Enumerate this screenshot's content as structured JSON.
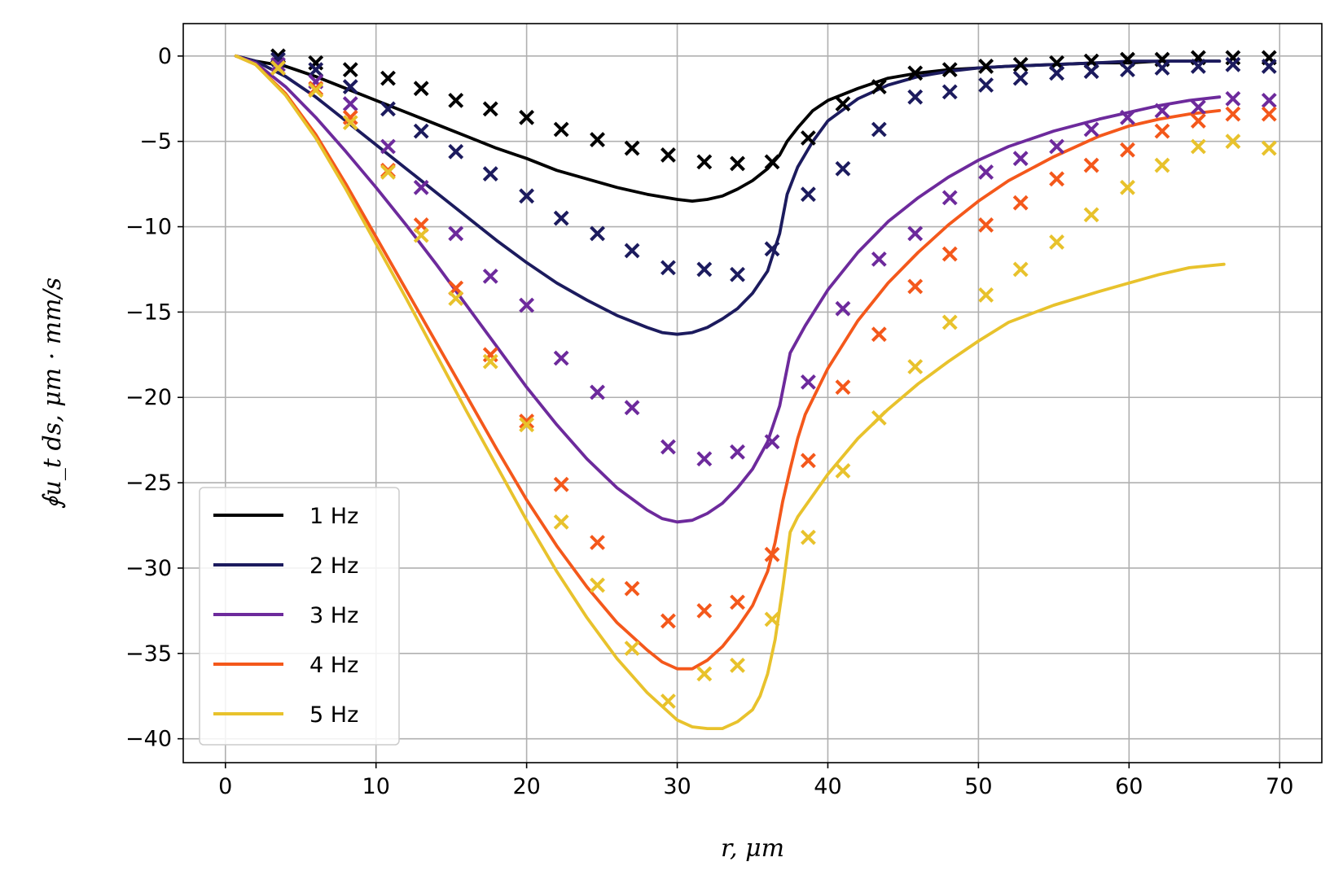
{
  "chart_data": {
    "type": "line",
    "title": "",
    "xlabel": "r, μm",
    "ylabel": "∮u_t ds, μm · mm/s",
    "xlim": [
      -2.8,
      72.8
    ],
    "ylim": [
      -41.4,
      1.9
    ],
    "x_ticks": [
      0,
      10,
      20,
      30,
      40,
      50,
      60,
      70
    ],
    "x_tick_labels": [
      "0",
      "10",
      "20",
      "30",
      "40",
      "50",
      "60",
      "70"
    ],
    "y_ticks": [
      0,
      -5,
      -10,
      -15,
      -20,
      -25,
      -30,
      -35,
      -40
    ],
    "y_tick_labels": [
      "0",
      "−5",
      "−10",
      "−15",
      "−20",
      "−25",
      "−30",
      "−35",
      "−40"
    ],
    "grid": true,
    "legend_position": "lower-left",
    "series": [
      {
        "name": "1 Hz",
        "color": "#000000",
        "line": {
          "x": [
            0.7,
            2,
            4,
            6,
            8,
            10,
            12,
            14,
            16,
            18,
            20,
            22,
            24,
            26,
            28,
            30,
            31,
            32,
            33,
            34,
            35,
            36,
            36.8,
            37.3,
            38,
            39,
            40,
            42,
            44,
            46,
            48,
            50,
            52,
            55,
            58,
            60,
            62,
            64,
            66
          ],
          "y": [
            0,
            -0.3,
            -0.6,
            -1.2,
            -1.9,
            -2.6,
            -3.3,
            -4,
            -4.7,
            -5.4,
            -6,
            -6.7,
            -7.2,
            -7.7,
            -8.1,
            -8.4,
            -8.5,
            -8.4,
            -8.2,
            -7.8,
            -7.3,
            -6.6,
            -5.8,
            -5,
            -4.2,
            -3.2,
            -2.6,
            -1.9,
            -1.3,
            -1,
            -0.8,
            -0.7,
            -0.6,
            -0.5,
            -0.4,
            -0.4,
            -0.3,
            -0.3,
            -0.3
          ]
        },
        "markers": {
          "x": [
            3.5,
            6,
            8.3,
            10.8,
            13,
            15.3,
            17.6,
            20,
            22.3,
            24.7,
            27,
            29.4,
            31.8,
            34,
            36.3,
            38.7,
            41,
            43.4,
            45.8,
            48.1,
            50.5,
            52.8,
            55.2,
            57.5,
            59.9,
            62.2,
            64.6,
            66.9,
            69.3
          ],
          "y": [
            0,
            -0.4,
            -0.8,
            -1.3,
            -1.9,
            -2.6,
            -3.1,
            -3.6,
            -4.3,
            -4.9,
            -5.4,
            -5.8,
            -6.2,
            -6.3,
            -6.2,
            -4.8,
            -2.8,
            -1.8,
            -1,
            -0.8,
            -0.6,
            -0.5,
            -0.4,
            -0.3,
            -0.2,
            -0.2,
            -0.1,
            -0.1,
            -0.1
          ]
        }
      },
      {
        "name": "2 Hz",
        "color": "#1c1b5e",
        "line": {
          "x": [
            0.7,
            2,
            4,
            6,
            8,
            10,
            12,
            14,
            16,
            18,
            20,
            22,
            24,
            26,
            28,
            29,
            30,
            31,
            32,
            33,
            34,
            35,
            36,
            36.8,
            37.3,
            38,
            39,
            40,
            42,
            44,
            46,
            48,
            50,
            52,
            55,
            58,
            60,
            62,
            64,
            66
          ],
          "y": [
            0,
            -0.3,
            -1.2,
            -2.4,
            -3.8,
            -5.2,
            -6.6,
            -8,
            -9.4,
            -10.8,
            -12.1,
            -13.3,
            -14.3,
            -15.2,
            -15.9,
            -16.2,
            -16.3,
            -16.2,
            -15.9,
            -15.4,
            -14.8,
            -13.9,
            -12.6,
            -10.4,
            -8.1,
            -6.5,
            -5,
            -3.8,
            -2.5,
            -1.7,
            -1.2,
            -0.9,
            -0.7,
            -0.6,
            -0.5,
            -0.4,
            -0.3,
            -0.3,
            -0.3,
            -0.3
          ]
        },
        "markers": {
          "x": [
            3.5,
            6,
            8.3,
            10.8,
            13,
            15.3,
            17.6,
            20,
            22.3,
            24.7,
            27,
            29.4,
            31.8,
            34,
            36.3,
            38.7,
            41,
            43.4,
            45.8,
            48.1,
            50.5,
            52.8,
            55.2,
            57.5,
            59.9,
            62.2,
            64.6,
            66.9,
            69.3
          ],
          "y": [
            -0.2,
            -0.8,
            -1.8,
            -3.1,
            -4.4,
            -5.6,
            -6.9,
            -8.2,
            -9.5,
            -10.4,
            -11.4,
            -12.4,
            -12.5,
            -12.8,
            -11.3,
            -8.1,
            -6.6,
            -4.3,
            -2.4,
            -2.1,
            -1.7,
            -1.3,
            -1,
            -0.9,
            -0.8,
            -0.7,
            -0.6,
            -0.5,
            -0.6
          ]
        }
      },
      {
        "name": "3 Hz",
        "color": "#6d2a9c",
        "line": {
          "x": [
            0.7,
            2,
            4,
            6,
            8,
            10,
            12,
            14,
            16,
            18,
            20,
            22,
            24,
            26,
            28,
            29,
            30,
            31,
            32,
            33,
            34,
            35,
            36,
            36.8,
            37.5,
            38.5,
            40,
            42,
            44,
            46,
            48,
            50,
            52,
            55,
            58,
            60,
            62,
            64,
            66
          ],
          "y": [
            0,
            -0.4,
            -1.8,
            -3.6,
            -5.6,
            -7.7,
            -9.9,
            -12.2,
            -14.6,
            -17,
            -19.4,
            -21.6,
            -23.6,
            -25.3,
            -26.6,
            -27.1,
            -27.3,
            -27.2,
            -26.8,
            -26.2,
            -25.3,
            -24.2,
            -22.6,
            -20.5,
            -17.4,
            -15.8,
            -13.7,
            -11.5,
            -9.7,
            -8.3,
            -7.1,
            -6.1,
            -5.3,
            -4.4,
            -3.7,
            -3.3,
            -2.9,
            -2.6,
            -2.4
          ]
        },
        "markers": {
          "x": [
            3.5,
            6,
            8.3,
            10.8,
            13,
            15.3,
            17.6,
            20,
            22.3,
            24.7,
            27,
            29.4,
            31.8,
            34,
            36.3,
            38.7,
            41,
            43.4,
            45.8,
            48.1,
            50.5,
            52.8,
            55.2,
            57.5,
            59.9,
            62.2,
            64.6,
            66.9,
            69.3
          ],
          "y": [
            -0.5,
            -1.5,
            -2.8,
            -5.3,
            -7.7,
            -10.4,
            -12.9,
            -14.6,
            -17.7,
            -19.7,
            -20.6,
            -22.9,
            -23.6,
            -23.2,
            -22.6,
            -19.1,
            -14.8,
            -11.9,
            -10.4,
            -8.3,
            -6.8,
            -6,
            -5.3,
            -4.3,
            -3.6,
            -3.2,
            -3,
            -2.5,
            -2.6
          ]
        }
      },
      {
        "name": "4 Hz",
        "color": "#f4581b",
        "line": {
          "x": [
            0.7,
            2,
            4,
            6,
            8,
            10,
            12,
            14,
            16,
            18,
            20,
            22,
            24,
            26,
            28,
            29,
            30,
            31,
            32,
            33,
            34,
            35,
            36,
            36.5,
            37,
            37.5,
            38,
            38.5,
            40,
            42,
            44,
            46,
            48,
            50,
            52,
            55,
            58,
            60,
            62,
            64,
            66
          ],
          "y": [
            0,
            -0.5,
            -2.2,
            -4.6,
            -7.5,
            -10.6,
            -13.7,
            -16.8,
            -19.9,
            -23,
            -26,
            -28.7,
            -31.1,
            -33.2,
            -34.8,
            -35.5,
            -35.9,
            -35.9,
            -35.4,
            -34.6,
            -33.5,
            -32.2,
            -30.2,
            -28.5,
            -26.1,
            -24.2,
            -22.4,
            -21,
            -18.3,
            -15.5,
            -13.3,
            -11.5,
            -9.9,
            -8.5,
            -7.3,
            -5.9,
            -4.7,
            -4.1,
            -3.7,
            -3.4,
            -3.2
          ]
        },
        "markers": {
          "x": [
            3.5,
            6,
            8.3,
            10.8,
            13,
            15.3,
            17.6,
            20,
            22.3,
            24.7,
            27,
            29.4,
            31.8,
            34,
            36.3,
            38.7,
            41,
            43.4,
            45.8,
            48.1,
            50.5,
            52.8,
            55.2,
            57.5,
            59.9,
            62.2,
            64.6,
            66.9,
            69.3
          ],
          "y": [
            -0.7,
            -1.9,
            -3.6,
            -6.7,
            -9.9,
            -13.6,
            -17.5,
            -21.4,
            -25.1,
            -28.5,
            -31.2,
            -33.1,
            -32.5,
            -32,
            -29.2,
            -23.7,
            -19.4,
            -16.3,
            -13.5,
            -11.6,
            -9.9,
            -8.6,
            -7.2,
            -6.4,
            -5.5,
            -4.4,
            -3.8,
            -3.4,
            -3.4
          ]
        }
      },
      {
        "name": "5 Hz",
        "color": "#e8c22c",
        "line": {
          "x": [
            0.7,
            2,
            4,
            6,
            8,
            10,
            12,
            14,
            16,
            18,
            20,
            22,
            24,
            26,
            28,
            30,
            31,
            32,
            33,
            34,
            35,
            35.5,
            36,
            36.5,
            37,
            37.5,
            38,
            40,
            42,
            44,
            46,
            48,
            50,
            52,
            55,
            58,
            60,
            62,
            64,
            66.3
          ],
          "y": [
            0,
            -0.5,
            -2.3,
            -4.8,
            -7.8,
            -11,
            -14.2,
            -17.5,
            -20.8,
            -24,
            -27.2,
            -30.2,
            -32.9,
            -35.3,
            -37.3,
            -38.9,
            -39.3,
            -39.4,
            -39.4,
            -39,
            -38.3,
            -37.5,
            -36.2,
            -34.2,
            -31.2,
            -27.9,
            -27,
            -24.5,
            -22.4,
            -20.7,
            -19.2,
            -17.9,
            -16.7,
            -15.6,
            -14.6,
            -13.8,
            -13.3,
            -12.8,
            -12.4,
            -12.2
          ]
        },
        "markers": {
          "x": [
            3.5,
            6,
            8.3,
            10.8,
            13,
            15.3,
            17.6,
            20,
            22.3,
            24.7,
            27,
            29.4,
            31.8,
            34,
            36.3,
            38.7,
            41,
            43.4,
            45.8,
            48.1,
            50.5,
            52.8,
            55.2,
            57.5,
            59.9,
            62.2,
            64.6,
            66.9,
            69.3
          ],
          "y": [
            -0.7,
            -2,
            -3.9,
            -6.8,
            -10.5,
            -14.2,
            -17.9,
            -21.6,
            -27.3,
            -31,
            -34.7,
            -37.8,
            -36.2,
            -35.7,
            -33,
            -28.2,
            -24.3,
            -21.2,
            -18.2,
            -15.6,
            -14,
            -12.5,
            -10.9,
            -9.3,
            -7.7,
            -6.4,
            -5.3,
            -5,
            -5.4
          ]
        }
      }
    ]
  }
}
